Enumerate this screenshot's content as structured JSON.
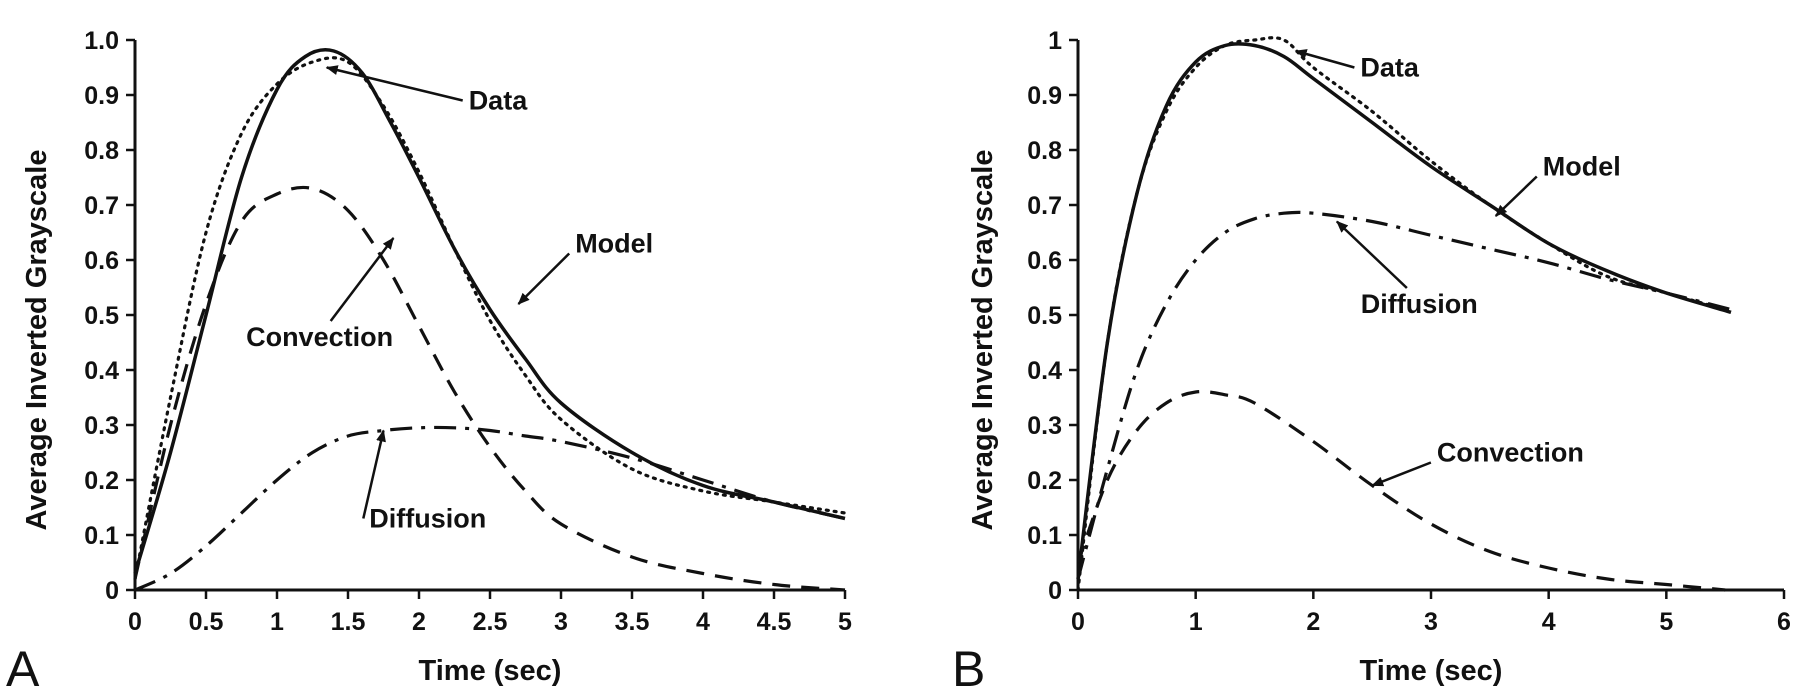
{
  "chart_data": [
    {
      "panel": "A",
      "type": "line",
      "xlabel": "Time (sec)",
      "ylabel": "Average Inverted Grayscale",
      "xlim": [
        0,
        5
      ],
      "ylim": [
        0,
        1.0
      ],
      "xticks": [
        "0",
        "0.5",
        "1",
        "1.5",
        "2",
        "2.5",
        "3",
        "3.5",
        "4",
        "4.5",
        "5"
      ],
      "yticks": [
        "0",
        "0.1",
        "0.2",
        "0.3",
        "0.4",
        "0.5",
        "0.6",
        "0.7",
        "0.8",
        "0.9",
        "1.0"
      ],
      "grid": false,
      "series": [
        {
          "name": "Data",
          "style": "dotted",
          "x": [
            0,
            0.25,
            0.5,
            0.75,
            1.0,
            1.25,
            1.5,
            1.75,
            2.0,
            2.25,
            2.5,
            2.75,
            3.0,
            3.5,
            4.0,
            4.5,
            5.0
          ],
          "y": [
            0.02,
            0.35,
            0.65,
            0.83,
            0.92,
            0.96,
            0.96,
            0.88,
            0.76,
            0.62,
            0.49,
            0.39,
            0.31,
            0.22,
            0.18,
            0.16,
            0.14
          ]
        },
        {
          "name": "Model",
          "style": "solid",
          "x": [
            0,
            0.25,
            0.5,
            0.75,
            1.0,
            1.2,
            1.4,
            1.6,
            1.8,
            2.0,
            2.25,
            2.5,
            2.75,
            3.0,
            3.5,
            4.0,
            4.5,
            5.0
          ],
          "y": [
            0.03,
            0.25,
            0.5,
            0.75,
            0.91,
            0.97,
            0.98,
            0.94,
            0.85,
            0.75,
            0.62,
            0.51,
            0.42,
            0.34,
            0.25,
            0.19,
            0.16,
            0.13
          ]
        },
        {
          "name": "Convection",
          "style": "dashed",
          "x": [
            0,
            0.25,
            0.5,
            0.75,
            1.0,
            1.25,
            1.5,
            1.75,
            2.0,
            2.25,
            2.5,
            2.75,
            3.0,
            3.5,
            4.0,
            4.5,
            5.0
          ],
          "y": [
            0.02,
            0.3,
            0.52,
            0.67,
            0.72,
            0.73,
            0.69,
            0.6,
            0.48,
            0.36,
            0.26,
            0.18,
            0.12,
            0.06,
            0.03,
            0.01,
            0.0
          ]
        },
        {
          "name": "Diffusion",
          "style": "dash-dot",
          "x": [
            0,
            0.25,
            0.5,
            0.75,
            1.0,
            1.25,
            1.5,
            1.75,
            2.0,
            2.25,
            2.5,
            2.75,
            3.0,
            3.5,
            4.0,
            4.5,
            5.0
          ],
          "y": [
            0.0,
            0.03,
            0.08,
            0.14,
            0.2,
            0.25,
            0.28,
            0.29,
            0.295,
            0.295,
            0.29,
            0.28,
            0.27,
            0.24,
            0.2,
            0.16,
            0.13
          ]
        }
      ],
      "annotations": [
        {
          "text": "Data",
          "x": 2.35,
          "y": 0.89,
          "arrow_to": [
            1.35,
            0.95
          ],
          "anchor": "start"
        },
        {
          "text": "Model",
          "x": 3.1,
          "y": 0.63,
          "arrow_to": [
            2.7,
            0.52
          ],
          "anchor": "start"
        },
        {
          "text": "Convection",
          "x": 1.3,
          "y": 0.46,
          "arrow_to": [
            1.82,
            0.64
          ],
          "anchor": "middle"
        },
        {
          "text": "Diffusion",
          "x": 1.65,
          "y": 0.13,
          "arrow_to": [
            1.75,
            0.29
          ],
          "anchor": "start"
        }
      ]
    },
    {
      "panel": "B",
      "type": "line",
      "xlabel": "Time (sec)",
      "ylabel": "Average Inverted Grayscale",
      "xlim": [
        0,
        6
      ],
      "ylim": [
        0,
        1
      ],
      "xticks": [
        "0",
        "1",
        "2",
        "3",
        "4",
        "5",
        "6"
      ],
      "yticks": [
        "0",
        "0.1",
        "0.2",
        "0.3",
        "0.4",
        "0.5",
        "0.6",
        "0.7",
        "0.8",
        "0.9",
        "1"
      ],
      "grid": false,
      "series": [
        {
          "name": "Data",
          "style": "dotted",
          "x": [
            0,
            0.25,
            0.5,
            0.75,
            1.0,
            1.25,
            1.5,
            1.75,
            2.0,
            2.5,
            3.0,
            3.5,
            4.0,
            4.5,
            5.0,
            5.5
          ],
          "y": [
            0.0,
            0.45,
            0.72,
            0.87,
            0.95,
            0.99,
            1.0,
            1.0,
            0.95,
            0.87,
            0.78,
            0.7,
            0.63,
            0.57,
            0.54,
            0.51
          ]
        },
        {
          "name": "Model",
          "style": "solid",
          "x": [
            0,
            0.25,
            0.5,
            0.75,
            1.0,
            1.25,
            1.5,
            1.75,
            2.0,
            2.5,
            3.0,
            3.5,
            4.0,
            4.5,
            5.0,
            5.55
          ],
          "y": [
            0.02,
            0.45,
            0.72,
            0.88,
            0.96,
            0.99,
            0.99,
            0.97,
            0.93,
            0.85,
            0.77,
            0.7,
            0.63,
            0.58,
            0.54,
            0.505
          ]
        },
        {
          "name": "Convection",
          "style": "dashed",
          "x": [
            0,
            0.25,
            0.5,
            0.75,
            1.0,
            1.25,
            1.5,
            2.0,
            2.5,
            3.0,
            3.5,
            4.0,
            4.5,
            5.0,
            5.5
          ],
          "y": [
            0.05,
            0.2,
            0.29,
            0.34,
            0.36,
            0.355,
            0.34,
            0.27,
            0.19,
            0.12,
            0.07,
            0.04,
            0.02,
            0.01,
            0.0
          ]
        },
        {
          "name": "Diffusion",
          "style": "dash-dot",
          "x": [
            0,
            0.25,
            0.5,
            0.75,
            1.0,
            1.25,
            1.5,
            1.75,
            2.0,
            2.5,
            3.0,
            3.5,
            4.0,
            4.5,
            5.0,
            5.55
          ],
          "y": [
            0.02,
            0.22,
            0.4,
            0.52,
            0.6,
            0.65,
            0.675,
            0.685,
            0.685,
            0.67,
            0.645,
            0.62,
            0.595,
            0.565,
            0.54,
            0.51
          ]
        }
      ],
      "annotations": [
        {
          "text": "Data",
          "x": 2.4,
          "y": 0.95,
          "arrow_to": [
            1.85,
            0.98
          ],
          "anchor": "start"
        },
        {
          "text": "Model",
          "x": 3.95,
          "y": 0.77,
          "arrow_to": [
            3.55,
            0.68
          ],
          "anchor": "start"
        },
        {
          "text": "Diffusion",
          "x": 2.9,
          "y": 0.52,
          "arrow_to": [
            2.2,
            0.67
          ],
          "anchor": "middle"
        },
        {
          "text": "Convection",
          "x": 3.05,
          "y": 0.25,
          "arrow_to": [
            2.5,
            0.19
          ],
          "anchor": "start"
        }
      ]
    }
  ]
}
